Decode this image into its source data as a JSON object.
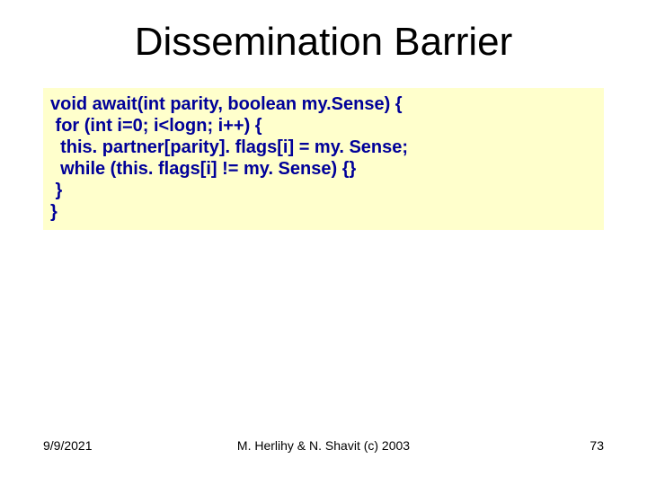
{
  "title": "Dissemination Barrier",
  "code": {
    "line1": "void await(int parity, boolean my.Sense) {",
    "line2": " for (int i=0; i<logn; i++) {",
    "line3": "  this. partner[parity]. flags[i] = my. Sense;",
    "line4": "  while (this. flags[i] != my. Sense) {}",
    "line5": " }",
    "line6": "}"
  },
  "footer": {
    "date": "9/9/2021",
    "center": "M. Herlihy & N. Shavit (c) 2003",
    "page": "73"
  },
  "colors": {
    "code_bg": "#ffffcc",
    "code_text": "#000099",
    "title_text": "#000000",
    "footer_text": "#000000",
    "background": "#ffffff"
  }
}
